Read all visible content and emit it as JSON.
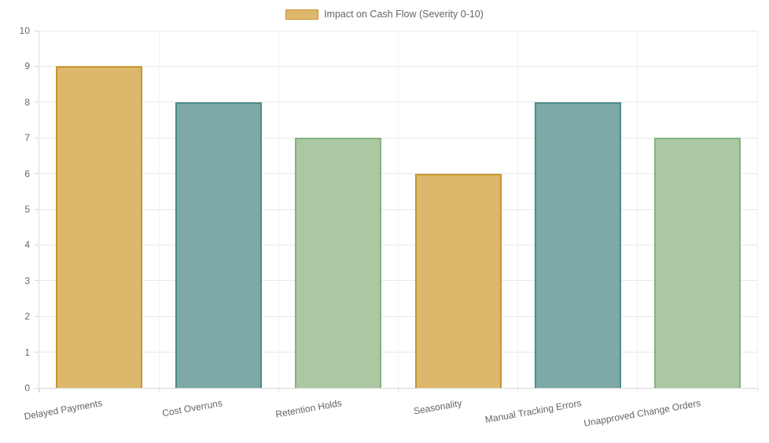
{
  "chart_data": {
    "type": "bar",
    "title": "",
    "xlabel": "",
    "ylabel": "",
    "legend_position": "top",
    "series_label": "Impact on Cash Flow (Severity 0-10)",
    "categories": [
      "Delayed Payments",
      "Cost Overruns",
      "Retention Holds",
      "Seasonality",
      "Manual Tracking Errors",
      "Unapproved Change Orders"
    ],
    "values": [
      9,
      8,
      7,
      6,
      8,
      7
    ],
    "ylim": [
      0,
      10
    ],
    "y_ticks": [
      "0",
      "1",
      "2",
      "3",
      "4",
      "5",
      "6",
      "7",
      "8",
      "9",
      "10"
    ],
    "grid": true,
    "bar_fill_colors": [
      "#ddb86c",
      "#7daaa6",
      "#aac8a1",
      "#ddb86c",
      "#7daaa6",
      "#aac8a1"
    ],
    "bar_border_colors": [
      "#c6952f",
      "#4d8b87",
      "#85b281",
      "#c6952f",
      "#4d8b87",
      "#85b281"
    ],
    "legend_swatch_fill": "#ddb86c",
    "legend_swatch_border": "#c6952f",
    "text_color": "#666666",
    "grid_color": "#e8e8e8"
  }
}
